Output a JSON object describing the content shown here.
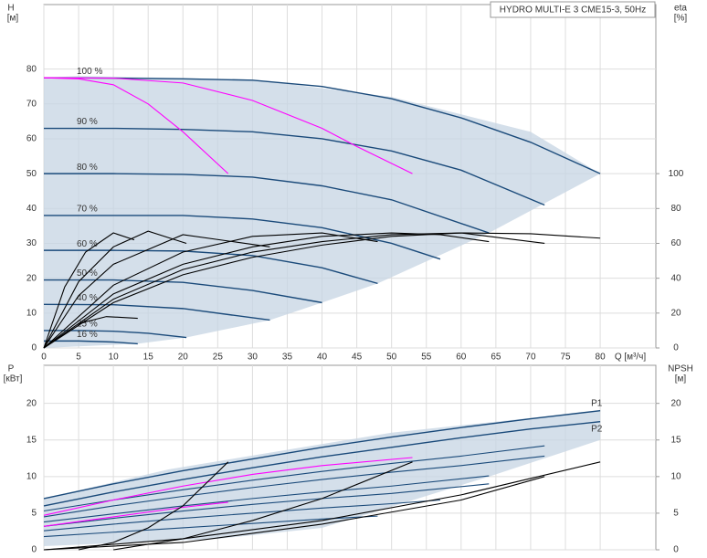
{
  "chart_data": [
    {
      "type": "line",
      "title": "HYDRO MULTI-E 3 CME15-3, 50Hz",
      "y_label": "H",
      "y_unit": "[м]",
      "y2_label": "eta",
      "y2_unit": "[%]",
      "x_label": "Q [м³/ч]",
      "xlim": [
        0,
        88
      ],
      "xticks": [
        0,
        5,
        10,
        15,
        20,
        25,
        30,
        35,
        40,
        45,
        50,
        55,
        60,
        65,
        70,
        75,
        80
      ],
      "ylim": [
        0,
        98.5
      ],
      "yticks": [
        0,
        10,
        20,
        30,
        40,
        50,
        60,
        70,
        80
      ],
      "y2lim": [
        0,
        197
      ],
      "y2ticks": [
        0,
        20,
        40,
        60,
        80,
        100
      ],
      "grid": true,
      "area": {
        "color": "#c5d4e3",
        "x": [
          0,
          0,
          5,
          30,
          50,
          70,
          80,
          64,
          48,
          40,
          32.5,
          20.5,
          13.5,
          0
        ],
        "values": [
          0,
          77.5,
          78,
          77,
          72,
          62,
          50,
          33,
          18.5,
          13,
          8,
          3,
          1.2,
          0
        ]
      },
      "series": [
        {
          "name": "100 %",
          "color": "#1a4a7a",
          "x": [
            0,
            10,
            20,
            30,
            40,
            50,
            60,
            70,
            80
          ],
          "values": [
            77.5,
            77.4,
            77.2,
            76.8,
            75,
            71.5,
            66,
            59,
            50
          ]
        },
        {
          "name": "90 %",
          "color": "#1a4a7a",
          "x": [
            0,
            10,
            20,
            30,
            40,
            50,
            60,
            72
          ],
          "values": [
            63,
            63,
            62.7,
            62,
            60,
            56.5,
            51,
            41
          ]
        },
        {
          "name": "80 %",
          "color": "#1a4a7a",
          "x": [
            0,
            10,
            20,
            30,
            40,
            50,
            64
          ],
          "values": [
            50,
            50,
            49.8,
            49,
            46.5,
            42.5,
            33
          ]
        },
        {
          "name": "70 %",
          "color": "#1a4a7a",
          "x": [
            0,
            10,
            20,
            30,
            40,
            50,
            57
          ],
          "values": [
            38,
            38,
            38,
            37,
            34.5,
            30,
            25.5
          ]
        },
        {
          "name": "60 %",
          "color": "#1a4a7a",
          "x": [
            0,
            10,
            20,
            30,
            40,
            48
          ],
          "values": [
            28,
            28,
            27.8,
            26.5,
            23,
            18.5
          ]
        },
        {
          "name": "50 %",
          "color": "#1a4a7a",
          "x": [
            0,
            10,
            20,
            30,
            40
          ],
          "values": [
            19.5,
            19.5,
            18.8,
            16.5,
            13
          ]
        },
        {
          "name": "40 %",
          "color": "#1a4a7a",
          "x": [
            0,
            10,
            20,
            32.5
          ],
          "values": [
            12.5,
            12.4,
            11.3,
            8
          ]
        },
        {
          "name": "25 %",
          "color": "#1a4a7a",
          "x": [
            0,
            5,
            10,
            15,
            20.5
          ],
          "values": [
            5,
            5,
            4.8,
            4.2,
            3
          ]
        },
        {
          "name": "16 %",
          "color": "#1a4a7a",
          "x": [
            0,
            5,
            10,
            13.5
          ],
          "values": [
            2,
            2,
            1.7,
            1.2
          ]
        },
        {
          "color": "#ff00ff",
          "x": [
            0,
            5,
            10,
            15,
            20,
            26.5
          ],
          "values": [
            77.5,
            77.2,
            75.5,
            70,
            62,
            50
          ]
        },
        {
          "color": "#ff00ff",
          "x": [
            0,
            10,
            20,
            30,
            40,
            45,
            53
          ],
          "values": [
            77.5,
            77.4,
            76,
            71,
            63,
            57.8,
            50
          ]
        },
        {
          "color": "#000000",
          "axis": "y2",
          "x": [
            0,
            10,
            20,
            30,
            40,
            50,
            60,
            70,
            80
          ],
          "values": [
            0,
            26,
            42,
            52,
            59,
            64,
            66,
            65.5,
            63
          ]
        },
        {
          "color": "#000000",
          "axis": "y2",
          "x": [
            0,
            10,
            20,
            30,
            40,
            50,
            60,
            72
          ],
          "values": [
            0,
            28,
            45,
            55,
            61,
            65,
            66,
            60
          ]
        },
        {
          "color": "#000000",
          "axis": "y2",
          "x": [
            0,
            10,
            20,
            30,
            40,
            50,
            57,
            64
          ],
          "values": [
            0,
            31,
            48,
            58,
            64,
            66,
            65,
            61
          ]
        },
        {
          "color": "#000000",
          "axis": "y2",
          "x": [
            0,
            10,
            20,
            30,
            40,
            48
          ],
          "values": [
            0,
            36,
            55,
            64,
            66,
            61
          ]
        },
        {
          "color": "#000000",
          "axis": "y2",
          "x": [
            0,
            5,
            10,
            20,
            32.5
          ],
          "values": [
            0,
            30,
            48,
            65,
            58
          ]
        },
        {
          "color": "#000000",
          "axis": "y2",
          "x": [
            0,
            5,
            10,
            15,
            20.5
          ],
          "values": [
            0,
            38,
            58,
            67,
            60
          ]
        },
        {
          "color": "#000000",
          "axis": "y2",
          "x": [
            0,
            3,
            6,
            10,
            13
          ],
          "values": [
            0,
            35,
            55,
            66,
            62
          ]
        },
        {
          "color": "#000000",
          "axis": "y2",
          "x": [
            5,
            9,
            13.5
          ],
          "values": [
            14,
            18,
            17
          ]
        }
      ]
    },
    {
      "type": "line",
      "y_label": "P",
      "y_unit": "[кВт]",
      "y2_label": "NPSH",
      "y2_unit": "[м]",
      "xlim": [
        0,
        88
      ],
      "xticks": [
        0,
        5,
        10,
        15,
        20,
        25,
        30,
        35,
        40,
        45,
        50,
        55,
        60,
        65,
        70,
        75,
        80
      ],
      "ylim": [
        0,
        25.2
      ],
      "yticks": [
        0,
        5,
        10,
        15,
        20
      ],
      "y2lim": [
        0,
        25.2
      ],
      "y2ticks": [
        0,
        5,
        10,
        15,
        20
      ],
      "grid": true,
      "area": {
        "color": "#c5d4e3",
        "x": [
          0,
          18,
          50,
          80,
          80,
          64,
          47,
          40,
          25,
          0
        ],
        "values": [
          7,
          11,
          16,
          19,
          15,
          10,
          5,
          3,
          1.5,
          0.5
        ]
      },
      "series": [
        {
          "name": "P1",
          "color": "#1a4a7a",
          "x": [
            0,
            10,
            20,
            30,
            40,
            50,
            60,
            70,
            80
          ],
          "values": [
            7,
            9,
            10.8,
            12.4,
            14,
            15.4,
            16.7,
            17.9,
            19
          ]
        },
        {
          "name": "P2",
          "color": "#1a4a7a",
          "x": [
            0,
            10,
            20,
            30,
            40,
            50,
            60,
            70,
            80
          ],
          "values": [
            6,
            7.9,
            9.6,
            11.2,
            12.7,
            14,
            15.3,
            16.5,
            17.5
          ]
        },
        {
          "color": "#1a4a7a",
          "x": [
            0,
            10,
            20,
            30,
            40,
            50,
            60,
            72
          ],
          "values": [
            5.3,
            6.8,
            8.2,
            9.5,
            10.7,
            11.8,
            12.8,
            14.2
          ]
        },
        {
          "color": "#1a4a7a",
          "x": [
            0,
            10,
            20,
            30,
            40,
            50,
            60,
            72
          ],
          "values": [
            4.5,
            6,
            7.3,
            8.5,
            9.6,
            10.6,
            11.5,
            12.8
          ]
        },
        {
          "color": "#1a4a7a",
          "x": [
            0,
            10,
            20,
            30,
            40,
            50,
            64
          ],
          "values": [
            3.8,
            4.9,
            6,
            7,
            7.9,
            8.7,
            10.1
          ]
        },
        {
          "color": "#1a4a7a",
          "x": [
            0,
            10,
            20,
            30,
            40,
            50,
            64
          ],
          "values": [
            3.2,
            4.3,
            5.3,
            6.2,
            7,
            7.7,
            9
          ]
        },
        {
          "color": "#1a4a7a",
          "x": [
            0,
            10,
            20,
            30,
            40,
            50,
            57
          ],
          "values": [
            2.6,
            3.5,
            4.3,
            5,
            5.7,
            6.3,
            6.8
          ]
        },
        {
          "color": "#1a4a7a",
          "x": [
            0,
            10,
            20,
            30,
            40,
            48
          ],
          "values": [
            1.8,
            2.4,
            3,
            3.6,
            4.2,
            4.6
          ]
        },
        {
          "color": "#ff00ff",
          "x": [
            0,
            10,
            20,
            30,
            40,
            53
          ],
          "values": [
            4.7,
            6.8,
            8.7,
            10.3,
            11.5,
            12.6
          ]
        },
        {
          "color": "#ff00ff",
          "x": [
            0,
            10,
            20,
            26.5
          ],
          "values": [
            3.2,
            4.5,
            5.8,
            6.5
          ]
        },
        {
          "color": "#000000",
          "axis": "y2",
          "x": [
            0,
            20,
            40,
            60,
            80
          ],
          "values": [
            0,
            1.5,
            4,
            7.5,
            12
          ]
        },
        {
          "color": "#000000",
          "axis": "y2",
          "x": [
            0,
            20,
            40,
            60,
            72
          ],
          "values": [
            0,
            1,
            3.5,
            6.8,
            10
          ]
        },
        {
          "color": "#000000",
          "axis": "y2",
          "x": [
            10,
            20,
            30,
            40,
            53
          ],
          "values": [
            0,
            1.5,
            4,
            7,
            12
          ]
        },
        {
          "color": "#000000",
          "axis": "y2",
          "x": [
            5,
            10,
            15,
            20,
            26.5
          ],
          "values": [
            0,
            1,
            3,
            6,
            12
          ]
        }
      ]
    }
  ]
}
